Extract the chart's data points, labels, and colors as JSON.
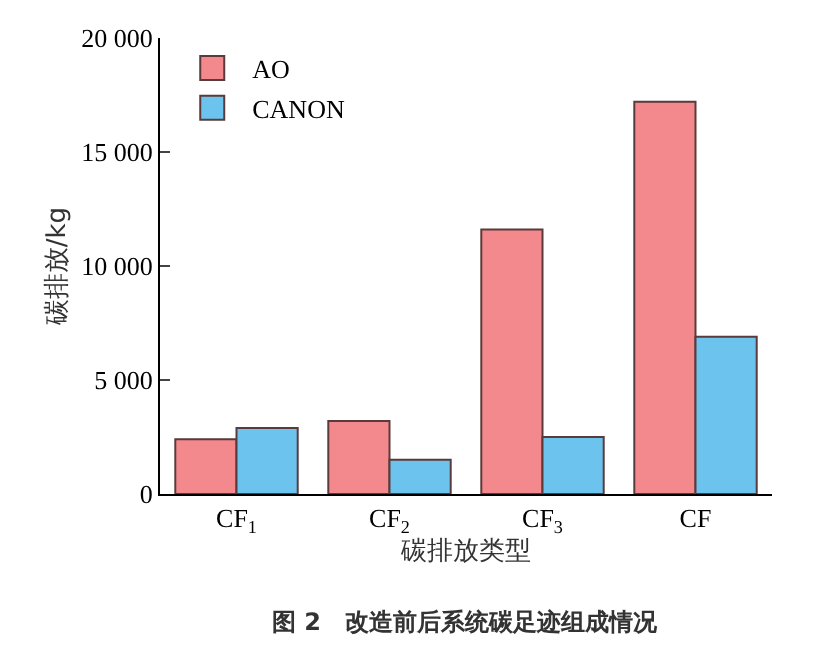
{
  "chart_data": {
    "type": "bar",
    "xlabel": "碳排放类型",
    "ylabel": "碳排放/kg",
    "categories": [
      "CF$_{1}$",
      "CF$_{2}$",
      "CF$_{3}$",
      "CF"
    ],
    "series": [
      {
        "name": "AO",
        "color": "#f4898d",
        "values": [
          2400,
          3200,
          11600,
          17200
        ]
      },
      {
        "name": "CANON",
        "color": "#6cc4ee",
        "values": [
          2900,
          1500,
          2500,
          6900
        ]
      }
    ],
    "ylim": [
      0,
      20000
    ],
    "yticks": [
      0,
      {
        "value": 5000,
        "label": "5 000"
      },
      {
        "value": 10000,
        "label": "10 000"
      },
      {
        "value": 15000,
        "label": "15 000"
      },
      {
        "value": 20000,
        "label": "20 000"
      }
    ],
    "legend": "top left",
    "annotations": [
      "图 2　改造前后系统碳足迹组成情况"
    ]
  }
}
